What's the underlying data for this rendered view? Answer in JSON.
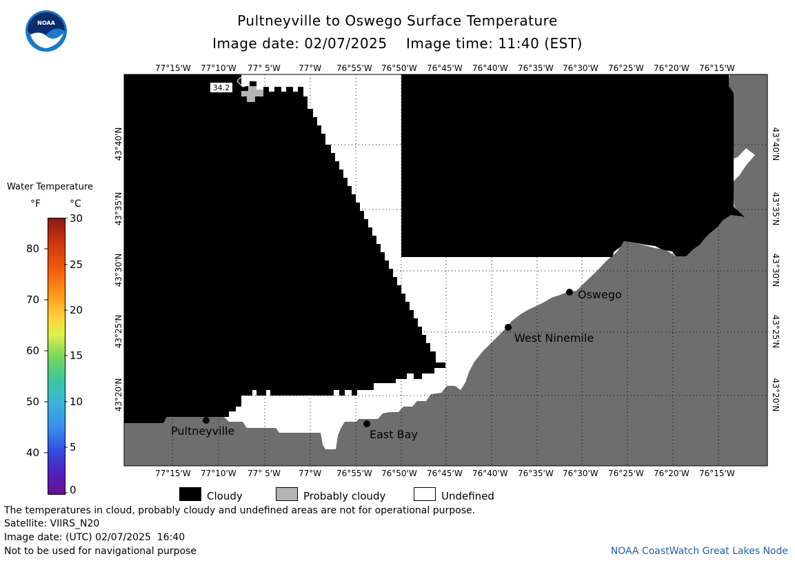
{
  "header": {
    "title": "Pultneyville to Oswego Surface Temperature",
    "date_line": "Image date: 02/07/2025    Image time: 11:40 (EST)"
  },
  "logo": {
    "text": "NOAA",
    "colors": {
      "outer": "#1a7ac8",
      "inner": "#0b2d6b",
      "bird": "#ffffff"
    }
  },
  "map": {
    "lon_labels": [
      "77°15'W",
      "77°10'W",
      "77° 5'W",
      "77°W",
      "76°55'W",
      "76°50'W",
      "76°45'W",
      "76°40'W",
      "76°35'W",
      "76°30'W",
      "76°25'W",
      "76°20'W",
      "76°15'W"
    ],
    "lat_labels": [
      "43°40'N",
      "43°35'N",
      "43°30'N",
      "43°25'N",
      "43°20'N"
    ],
    "cities": [
      {
        "name": "Pultneyville"
      },
      {
        "name": "East Bay"
      },
      {
        "name": "West Ninemile"
      },
      {
        "name": "Oswego"
      }
    ],
    "temp_marker": "34.2",
    "colors": {
      "cloudy": "#000000",
      "probably_cloudy": "#b4b4b4",
      "undefined": "#ffffff",
      "land": "#6e6e6e",
      "grid": "#000000"
    }
  },
  "scale": {
    "title": "Water Temperature",
    "unit_f": "°F",
    "unit_c": "°C",
    "f_ticks": [
      "80",
      "70",
      "60",
      "50",
      "40"
    ],
    "c_ticks": [
      "30",
      "25",
      "20",
      "15",
      "10",
      "5",
      "0"
    ]
  },
  "legend": [
    {
      "label": "Cloudy",
      "color": "#000000"
    },
    {
      "label": "Probably cloudy",
      "color": "#b4b4b4"
    },
    {
      "label": "Undefined",
      "color": "#ffffff"
    }
  ],
  "notes": {
    "line1": "The temperatures in cloud, probably cloudy and undefined areas are not for operational purpose.",
    "line2": "Satellite: VIIRS_N20",
    "line3": "Image date: (UTC) 02/07/2025  16:40",
    "line4": "Not to be used for navigational purpose",
    "credit": "NOAA CoastWatch Great Lakes Node"
  }
}
